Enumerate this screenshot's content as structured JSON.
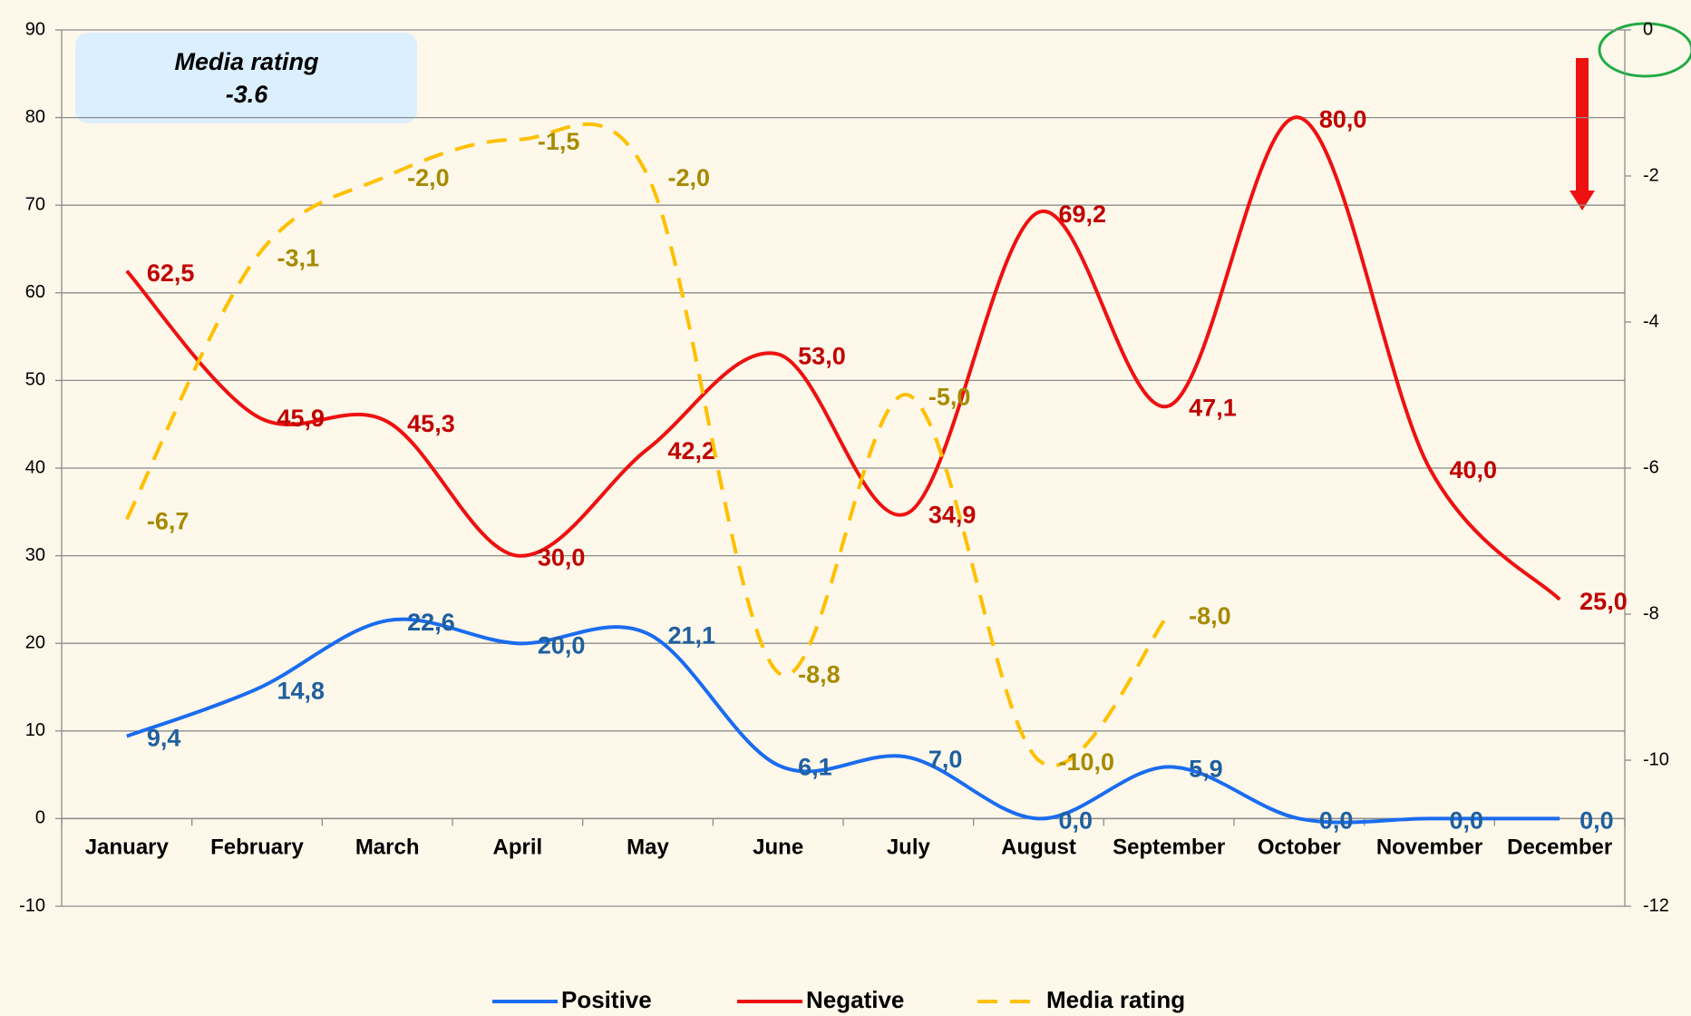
{
  "chart_data": {
    "type": "line",
    "categories": [
      "January",
      "February",
      "March",
      "April",
      "May",
      "June",
      "July",
      "August",
      "September",
      "October",
      "November",
      "December"
    ],
    "series": [
      {
        "name": "Positive",
        "color": "#1a6cf0",
        "label_color": "#1f5f9e",
        "style": "solid",
        "values": [
          9.4,
          14.8,
          22.6,
          20.0,
          21.1,
          6.1,
          7.0,
          0.0,
          5.9,
          0.0,
          0.0,
          0.0
        ],
        "value_labels": [
          "9,4",
          "14,8",
          "22,6",
          "20,0",
          "21,1",
          "6,1",
          "7,0",
          "0,0",
          "5,9",
          "0,0",
          "0,0",
          "0,0"
        ]
      },
      {
        "name": "Negative",
        "color": "#ee1111",
        "label_color": "#c00000",
        "style": "solid",
        "values": [
          62.5,
          45.9,
          45.3,
          30.0,
          42.2,
          53.0,
          34.9,
          69.2,
          47.1,
          80.0,
          40.0,
          25.0
        ],
        "value_labels": [
          "62,5",
          "45,9",
          "45,3",
          "30,0",
          "42,2",
          "53,0",
          "34,9",
          "69,2",
          "47,1",
          "80,0",
          "40,0",
          "25,0"
        ]
      },
      {
        "name": "Media rating",
        "color": "#ffc000",
        "label_color": "#a88a00",
        "style": "dashed",
        "axis": "y2",
        "values": [
          -6.7,
          -3.1,
          -2.0,
          -1.5,
          -2.0,
          -8.8,
          -5.0,
          -10.0,
          -8.0,
          null,
          null,
          null
        ],
        "value_labels": [
          "-6,7",
          "-3,1",
          "-2,0",
          "-1,5",
          "-2,0",
          "-8,8",
          "-5,0",
          "-10,0",
          "-8,0",
          null,
          null,
          null
        ]
      }
    ],
    "ylim": [
      -10,
      90
    ],
    "yticks": [
      -10,
      0,
      10,
      20,
      30,
      40,
      50,
      60,
      70,
      80,
      90
    ],
    "y2lim": [
      -12,
      0
    ],
    "y2ticks": [
      -12,
      -10,
      -8,
      -6,
      -4,
      -2,
      0
    ],
    "grid": true,
    "legend": "bottom",
    "annotations": [
      "Media rating",
      "-3.6"
    ]
  }
}
